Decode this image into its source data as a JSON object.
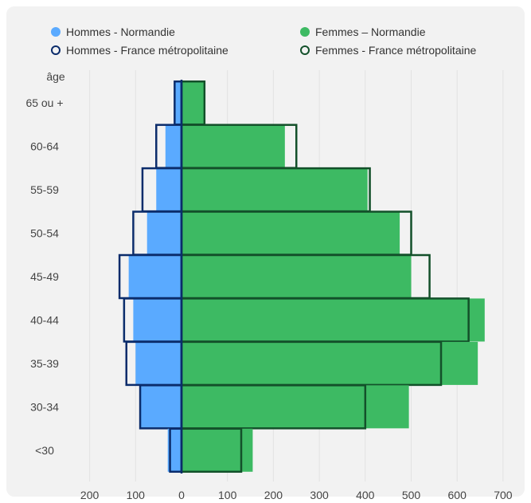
{
  "chart_data": {
    "type": "bar",
    "orientation": "horizontal",
    "subtype": "population-pyramid",
    "ylabel": "âge",
    "categories": [
      "65 ou +",
      "60-64",
      "55-59",
      "50-54",
      "45-49",
      "40-44",
      "35-39",
      "30-34",
      "<30"
    ],
    "series": [
      {
        "name": "Hommes - Normandie",
        "style": "filled",
        "side": "left",
        "color": "#5aaaff",
        "values": [
          15,
          35,
          55,
          75,
          115,
          105,
          100,
          90,
          30
        ]
      },
      {
        "name": "Femmes – Normandie",
        "style": "filled",
        "side": "right",
        "color": "#3dba63",
        "values": [
          50,
          225,
          405,
          475,
          500,
          660,
          645,
          495,
          155
        ]
      },
      {
        "name": "Hommes - France métropolitaine",
        "style": "outline",
        "side": "left",
        "color": "#0b2c6b",
        "values": [
          15,
          55,
          85,
          105,
          135,
          125,
          120,
          90,
          25
        ]
      },
      {
        "name": "Femmes - France métropolitaine",
        "style": "outline",
        "side": "right",
        "color": "#13502a",
        "values": [
          50,
          250,
          410,
          500,
          540,
          625,
          565,
          400,
          130
        ]
      }
    ],
    "xticks": [
      "200",
      "100",
      "0",
      "100",
      "200",
      "300",
      "400",
      "500",
      "600",
      "700"
    ],
    "xlim": [
      -200,
      700
    ],
    "grid": true,
    "legend_position": "top"
  }
}
